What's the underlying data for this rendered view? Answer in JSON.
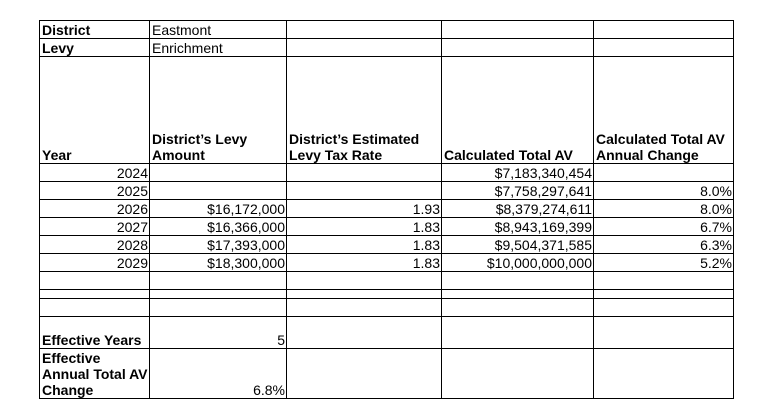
{
  "meta": {
    "district_label": "District",
    "district_value": "Eastmont",
    "levy_label": "Levy",
    "levy_value": "Enrichment"
  },
  "headers": {
    "year": "Year",
    "levy_amount": "District’s Levy Amount",
    "tax_rate": "District’s Estimated Levy Tax Rate",
    "total_av": "Calculated Total AV",
    "av_change": "Calculated Total AV Annual Change"
  },
  "rows": [
    {
      "year": "2024",
      "levy": "",
      "rate": "",
      "av": "$7,183,340,454",
      "change": ""
    },
    {
      "year": "2025",
      "levy": "",
      "rate": "",
      "av": "$7,758,297,641",
      "change": "8.0%"
    },
    {
      "year": "2026",
      "levy": "$16,172,000",
      "rate": "1.93",
      "av": "$8,379,274,611",
      "change": "8.0%"
    },
    {
      "year": "2027",
      "levy": "$16,366,000",
      "rate": "1.83",
      "av": "$8,943,169,399",
      "change": "6.7%"
    },
    {
      "year": "2028",
      "levy": "$17,393,000",
      "rate": "1.83",
      "av": "$9,504,371,585",
      "change": "6.3%"
    },
    {
      "year": "2029",
      "levy": "$18,300,000",
      "rate": "1.83",
      "av": "$10,000,000,000",
      "change": "5.2%"
    }
  ],
  "summary": {
    "effective_years_label": "Effective Years",
    "effective_years_value": "5",
    "effective_change_label": "Effective Annual Total AV Change",
    "effective_change_value": "6.8%"
  }
}
